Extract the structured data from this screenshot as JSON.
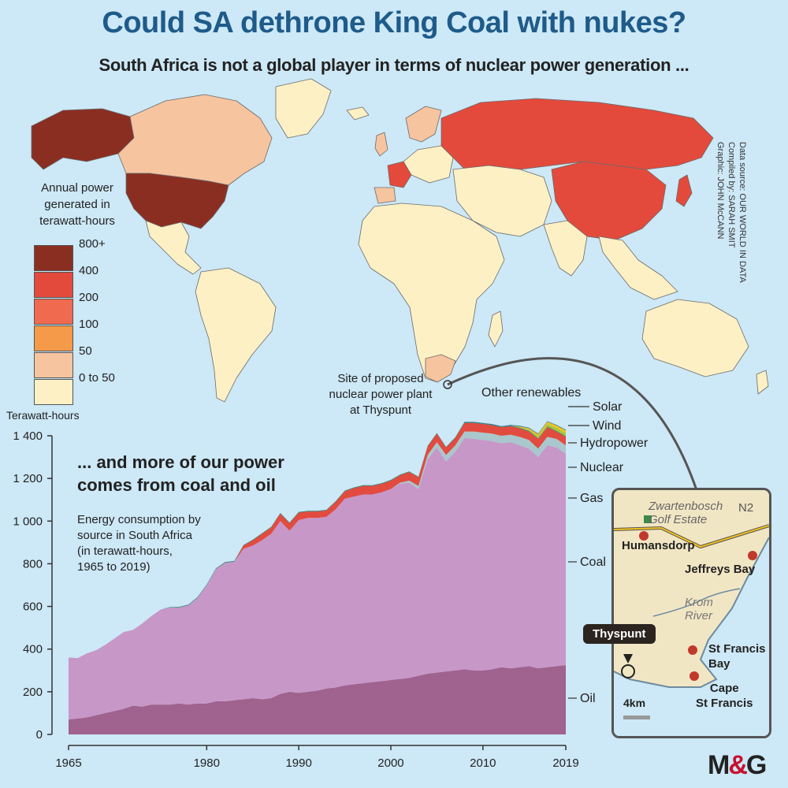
{
  "title": "Could SA dethrone King Coal with nukes?",
  "subtitle": "South Africa is not a global player in terms of nuclear power generation ...",
  "credits": {
    "graphic": "Graphic: JOHN McCANN",
    "compiled": "Compiled by: SARAH SMIT",
    "source": "Data source: OUR WORLD IN DATA"
  },
  "map_legend": {
    "title_lines": [
      "Annual power",
      "generated in",
      "terawatt-hours"
    ],
    "items": [
      {
        "label": "800+",
        "color": "#8b2e22"
      },
      {
        "label": "400",
        "color": "#e34a3c"
      },
      {
        "label": "200",
        "color": "#f06a50"
      },
      {
        "label": "100",
        "color": "#f49a48"
      },
      {
        "label": "50",
        "color": "#f7c4a0"
      },
      {
        "label": "0 to 50",
        "color": "#fdf0c5"
      }
    ]
  },
  "map_annotation": [
    "Site of proposed",
    "nuclear power plant",
    "at Thyspunt"
  ],
  "chart_heading": [
    "... and more of our power",
    "comes from coal and oil"
  ],
  "chart_description": [
    "Energy consumption by",
    "source in South Africa",
    "(in terawatt-hours,",
    "1965 to 2019)"
  ],
  "inset": {
    "labels": {
      "estate": [
        "Zwartenbosch",
        "Golf Estate"
      ],
      "road": "N2",
      "town1": "Humansdorp",
      "town2": "Jeffreys Bay",
      "river": [
        "Krom",
        "River"
      ],
      "site": "Thyspunt",
      "town3": [
        "St Francis",
        "Bay"
      ],
      "town4": [
        "Cape",
        "St Francis"
      ],
      "scale": "4km"
    }
  },
  "logo": {
    "left": "M",
    "amp": "&",
    "right": "G"
  },
  "chart_data": {
    "type": "area",
    "stacked": true,
    "ylabel": "Terawatt-hours",
    "ylim": [
      0,
      1400
    ],
    "yticks": [
      0,
      200,
      400,
      600,
      800,
      1000,
      1200,
      1400
    ],
    "ytick_labels": [
      "0",
      "200",
      "400",
      "600",
      "800",
      "1 000",
      "1 200",
      "1 400"
    ],
    "xlim": [
      1965,
      2019
    ],
    "xticks": [
      1965,
      1980,
      1990,
      2000,
      2010,
      2019
    ],
    "x": [
      1965,
      1966,
      1967,
      1968,
      1969,
      1970,
      1971,
      1972,
      1973,
      1974,
      1975,
      1976,
      1977,
      1978,
      1979,
      1980,
      1981,
      1982,
      1983,
      1984,
      1985,
      1986,
      1987,
      1988,
      1989,
      1990,
      1991,
      1992,
      1993,
      1994,
      1995,
      1996,
      1997,
      1998,
      1999,
      2000,
      2001,
      2002,
      2003,
      2004,
      2005,
      2006,
      2007,
      2008,
      2009,
      2010,
      2011,
      2012,
      2013,
      2014,
      2015,
      2016,
      2017,
      2018,
      2019
    ],
    "series": [
      {
        "name": "Oil",
        "color": "#a0628e",
        "values": [
          70,
          75,
          80,
          90,
          100,
          110,
          120,
          135,
          130,
          140,
          140,
          140,
          145,
          140,
          145,
          145,
          155,
          155,
          160,
          165,
          170,
          165,
          170,
          190,
          200,
          195,
          200,
          205,
          215,
          220,
          230,
          235,
          240,
          245,
          250,
          255,
          260,
          265,
          275,
          285,
          290,
          295,
          300,
          305,
          300,
          300,
          305,
          315,
          310,
          315,
          320,
          310,
          315,
          320,
          325
        ]
      },
      {
        "name": "Coal",
        "color": "#c797c8",
        "values": [
          290,
          283,
          300,
          305,
          320,
          340,
          360,
          355,
          390,
          415,
          445,
          455,
          450,
          465,
          495,
          555,
          620,
          650,
          650,
          705,
          715,
          745,
          770,
          810,
          755,
          810,
          815,
          810,
          805,
          835,
          875,
          880,
          885,
          880,
          885,
          895,
          915,
          915,
          875,
          1005,
          1055,
          985,
          1025,
          1085,
          1085,
          1080,
          1070,
          1050,
          1060,
          1040,
          1020,
          990,
          1040,
          1025,
          990
        ]
      },
      {
        "name": "Gas",
        "color": "#a9c7cc",
        "values": [
          0,
          0,
          0,
          0,
          0,
          0,
          0,
          0,
          0,
          0,
          0,
          0,
          0,
          0,
          0,
          0,
          0,
          0,
          0,
          0,
          0,
          0,
          0,
          0,
          0,
          0,
          0,
          0,
          0,
          0,
          0,
          0,
          0,
          0,
          0,
          0,
          5,
          10,
          15,
          20,
          25,
          30,
          30,
          30,
          35,
          35,
          35,
          35,
          35,
          40,
          40,
          40,
          40,
          40,
          40
        ]
      },
      {
        "name": "Nuclear",
        "color": "#e24b3f",
        "values": [
          0,
          0,
          0,
          0,
          0,
          0,
          0,
          0,
          0,
          0,
          0,
          0,
          0,
          0,
          0,
          0,
          0,
          0,
          0,
          15,
          25,
          30,
          30,
          35,
          35,
          35,
          30,
          30,
          30,
          35,
          35,
          40,
          40,
          40,
          40,
          40,
          35,
          40,
          40,
          40,
          40,
          35,
          35,
          40,
          40,
          40,
          40,
          40,
          40,
          40,
          40,
          45,
          45,
          35,
          40
        ]
      },
      {
        "name": "Hydropower",
        "color": "#2a7f6e",
        "values": [
          0,
          0,
          0,
          0,
          0,
          0,
          0,
          0,
          0,
          0,
          0,
          2,
          3,
          3,
          3,
          3,
          3,
          3,
          3,
          3,
          3,
          3,
          3,
          3,
          3,
          3,
          3,
          3,
          3,
          3,
          3,
          3,
          3,
          3,
          3,
          3,
          3,
          3,
          3,
          3,
          3,
          3,
          3,
          3,
          3,
          3,
          3,
          3,
          3,
          3,
          3,
          3,
          3,
          3,
          3
        ]
      },
      {
        "name": "Wind",
        "color": "#a8c83a",
        "values": [
          0,
          0,
          0,
          0,
          0,
          0,
          0,
          0,
          0,
          0,
          0,
          0,
          0,
          0,
          0,
          0,
          0,
          0,
          0,
          0,
          0,
          0,
          0,
          0,
          0,
          0,
          0,
          0,
          0,
          0,
          0,
          0,
          0,
          0,
          0,
          0,
          0,
          0,
          0,
          0,
          0,
          0,
          0,
          0,
          0,
          0,
          0,
          0,
          0,
          3,
          6,
          10,
          12,
          14,
          15
        ]
      },
      {
        "name": "Solar",
        "color": "#f4c21f",
        "values": [
          0,
          0,
          0,
          0,
          0,
          0,
          0,
          0,
          0,
          0,
          0,
          0,
          0,
          0,
          0,
          0,
          0,
          0,
          0,
          0,
          0,
          0,
          0,
          0,
          0,
          0,
          0,
          0,
          0,
          0,
          0,
          0,
          0,
          0,
          0,
          0,
          0,
          0,
          0,
          0,
          0,
          0,
          0,
          0,
          0,
          0,
          0,
          0,
          0,
          3,
          6,
          9,
          10,
          11,
          12
        ]
      },
      {
        "name": "Other renewables",
        "color": "#2b6e8f",
        "values": [
          0,
          0,
          0,
          0,
          0,
          0,
          0,
          0,
          0,
          0,
          0,
          0,
          0,
          0,
          0,
          0,
          0,
          0,
          0,
          0,
          0,
          0,
          0,
          0,
          0,
          0,
          0,
          0,
          0,
          0,
          0,
          0,
          0,
          0,
          0,
          0,
          0,
          0,
          0,
          0,
          0,
          0,
          0,
          2,
          2,
          2,
          2,
          2,
          3,
          3,
          3,
          3,
          3,
          3,
          3
        ]
      }
    ],
    "series_labels": [
      "Other renewables",
      "Solar",
      "Wind",
      "Hydropower",
      "Nuclear",
      "Gas",
      "Coal",
      "Oil"
    ]
  }
}
